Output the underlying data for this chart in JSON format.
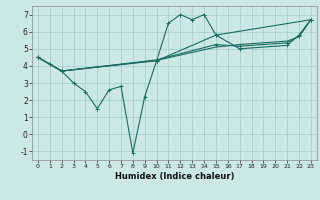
{
  "xlabel": "Humidex (Indice chaleur)",
  "bg_color": "#cce8e4",
  "grid_color": "#9eccc6",
  "line_color": "#1a6b60",
  "xlim": [
    -0.5,
    23.5
  ],
  "ylim": [
    -1.5,
    7.5
  ],
  "xticks": [
    0,
    1,
    2,
    3,
    4,
    5,
    6,
    7,
    8,
    9,
    10,
    11,
    12,
    13,
    14,
    15,
    16,
    17,
    18,
    19,
    20,
    21,
    22,
    23
  ],
  "yticks": [
    -1,
    0,
    1,
    2,
    3,
    4,
    5,
    6,
    7
  ],
  "line1_x": [
    0,
    1,
    2,
    3,
    4,
    5,
    6,
    7,
    8,
    9,
    10,
    11,
    12,
    13,
    14,
    15,
    23
  ],
  "line1_y": [
    4.5,
    4.1,
    3.7,
    3.0,
    2.5,
    1.5,
    2.6,
    2.8,
    -1.1,
    2.2,
    4.3,
    6.5,
    7.0,
    6.7,
    7.0,
    5.8,
    6.7
  ],
  "line2_x": [
    0,
    2,
    10,
    15,
    17,
    21,
    22,
    23
  ],
  "line2_y": [
    4.5,
    3.7,
    4.3,
    5.8,
    5.0,
    5.2,
    5.8,
    6.7
  ],
  "line3_x": [
    0,
    2,
    10,
    15,
    17,
    21,
    22,
    23
  ],
  "line3_y": [
    4.5,
    3.7,
    4.35,
    5.25,
    5.15,
    5.35,
    5.75,
    6.7
  ],
  "line4_x": [
    0,
    2,
    10,
    15,
    17,
    21,
    22,
    23
  ],
  "line4_y": [
    4.5,
    3.7,
    4.32,
    5.1,
    5.25,
    5.45,
    5.7,
    6.7
  ]
}
